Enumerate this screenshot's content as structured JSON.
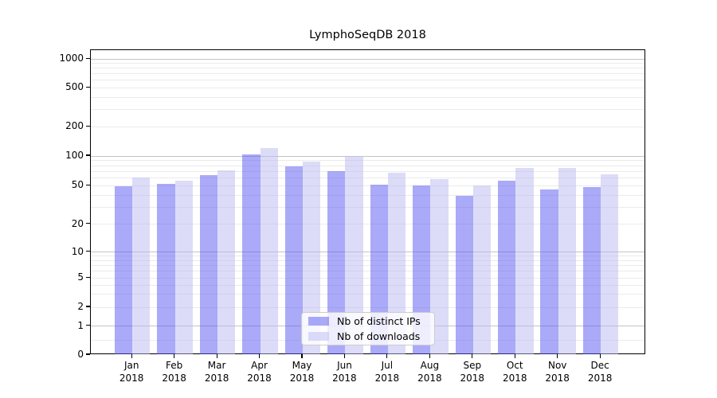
{
  "title": "LymphoSeqDB 2018",
  "chart_data": {
    "type": "bar",
    "title": "LymphoSeqDB 2018",
    "categories": [
      "Jan 2018",
      "Feb 2018",
      "Mar 2018",
      "Apr 2018",
      "May 2018",
      "Jun 2018",
      "Jul 2018",
      "Aug 2018",
      "Sep 2018",
      "Oct 2018",
      "Nov 2018",
      "Dec 2018"
    ],
    "series": [
      {
        "name": "Nb of distinct IPs",
        "values": [
          49,
          52,
          64,
          104,
          78,
          70,
          51,
          50,
          39,
          56,
          46,
          48
        ]
      },
      {
        "name": "Nb of downloads",
        "values": [
          61,
          56,
          72,
          120,
          88,
          100,
          68,
          58,
          50,
          76,
          76,
          65
        ]
      }
    ],
    "xlabel": "",
    "ylabel": "",
    "yscale": "log-like (asinh), 0 at baseline",
    "yticks": [
      1000,
      500,
      200,
      100,
      50,
      20,
      10,
      5,
      2,
      1,
      0
    ],
    "ylim": [
      0,
      1400
    ],
    "grid": "horizontal major (decades, darker) + minor (lighter)",
    "legend_position": "lower center, inside plot"
  },
  "colors": {
    "bar_distinct_ips": "rgba(85,85,241,0.5)",
    "bar_downloads": "rgba(185,185,241,0.5)",
    "grid_major": "#c4c4c4",
    "grid_minor": "#ebebeb",
    "axis_spine": "#000000",
    "legend_border": "#cccccc"
  }
}
